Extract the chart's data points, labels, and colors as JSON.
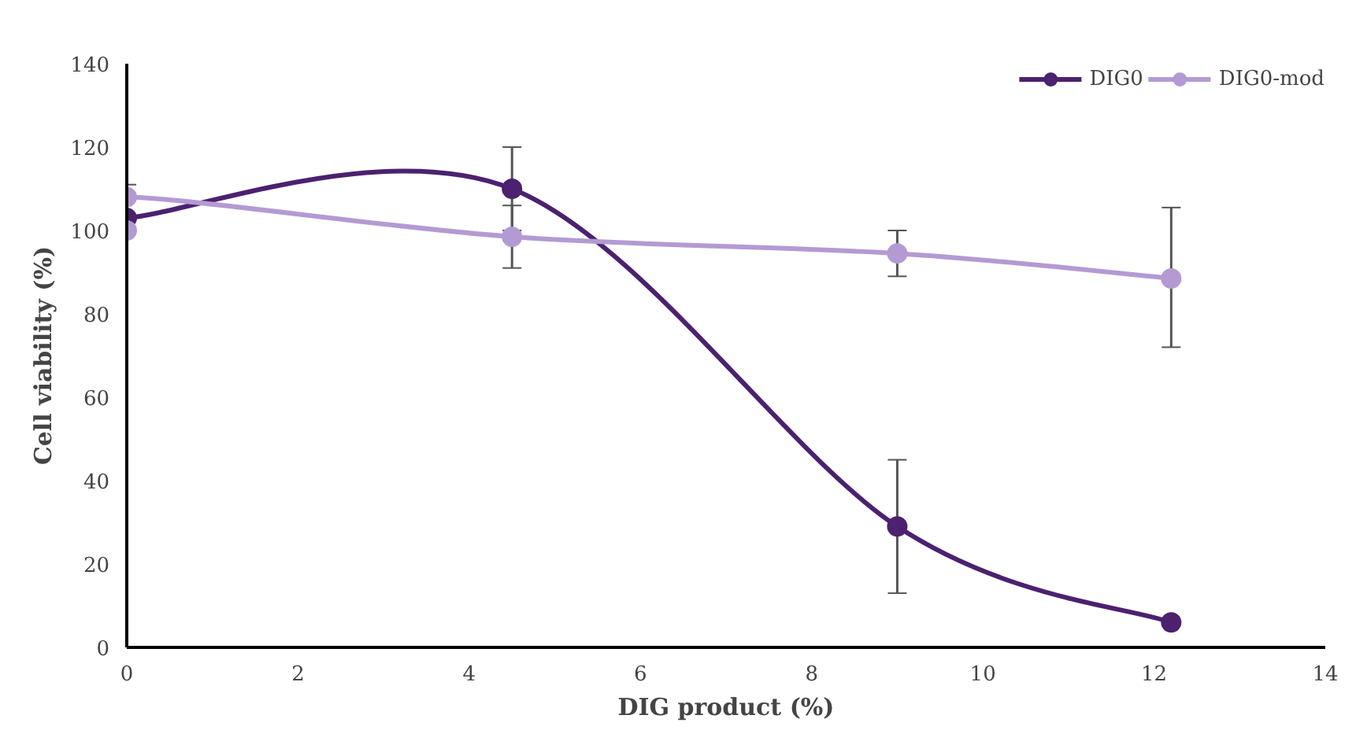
{
  "chart_data": {
    "type": "line",
    "xlabel": "DIG product (%)",
    "ylabel": "Cell viability (%)",
    "xlim": [
      0,
      14
    ],
    "xticks": [
      0,
      2,
      4,
      6,
      8,
      10,
      12,
      14
    ],
    "ylim": [
      0,
      140
    ],
    "yticks": [
      0,
      20,
      40,
      60,
      80,
      100,
      120,
      140
    ],
    "grid": false,
    "legend": "top right",
    "marker": "circle",
    "line_style": "solid",
    "series": [
      {
        "name": "DIG0",
        "color": "#4b2170",
        "x": [
          0,
          4.5,
          9,
          12.2
        ],
        "values": [
          103,
          110,
          29,
          6
        ],
        "errors": [
          null,
          [
            100,
            120
          ],
          [
            13,
            45
          ],
          null
        ]
      },
      {
        "name": "DIG0-mod",
        "color": "#b49ad3",
        "x": [
          0,
          0,
          4.5,
          9,
          12.2
        ],
        "values": [
          100,
          108,
          98.5,
          94.5,
          88.5
        ],
        "errors": [
          null,
          [
            100,
            111
          ],
          [
            91,
            106
          ],
          [
            89,
            100
          ],
          [
            72,
            105.5
          ]
        ]
      }
    ]
  }
}
